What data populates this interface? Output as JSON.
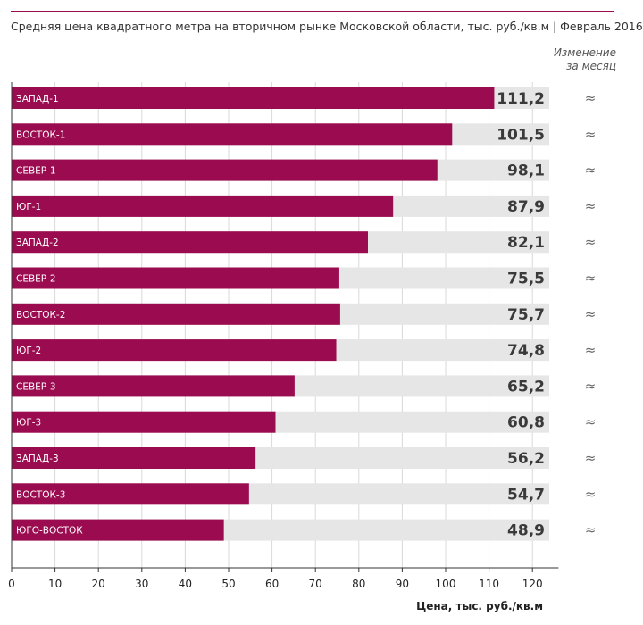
{
  "header": {
    "title": "Средняя цена квадратного метра на вторичном рынке Московской области, тыс. руб./кв.м | Февраль 2016",
    "change_heading_line1": "Изменение",
    "change_heading_line2": "за месяц"
  },
  "colors": {
    "bar": "#9b0b4f",
    "track": "#e6e6e6",
    "accent_rule": "#9b0b4f"
  },
  "chart_data": {
    "type": "bar",
    "orientation": "horizontal",
    "categories": [
      "ЗАПАД-1",
      "ВОСТОК-1",
      "СЕВЕР-1",
      "ЮГ-1",
      "ЗАПАД-2",
      "СЕВЕР-2",
      "ВОСТОК-2",
      "ЮГ-2",
      "СЕВЕР-3",
      "ЮГ-3",
      "ЗАПАД-3",
      "ВОСТОК-3",
      "ЮГО-ВОСТОК"
    ],
    "values": [
      111.2,
      101.5,
      98.1,
      87.9,
      82.1,
      75.5,
      75.7,
      74.8,
      65.2,
      60.8,
      56.2,
      54.7,
      48.9
    ],
    "value_labels": [
      "111,2",
      "101,5",
      "98,1",
      "87,9",
      "82,1",
      "75,5",
      "75,7",
      "74,8",
      "65,2",
      "60,8",
      "56,2",
      "54,7",
      "48,9"
    ],
    "monthly_change": [
      "≈",
      "≈",
      "≈",
      "≈",
      "≈",
      "≈",
      "≈",
      "≈",
      "≈",
      "≈",
      "≈",
      "≈",
      "≈"
    ],
    "xlabel": "Цена, тыс. руб./кв.м",
    "xlim": [
      0,
      126
    ],
    "xticks": [
      0,
      10,
      20,
      30,
      40,
      50,
      60,
      70,
      80,
      90,
      100,
      110,
      120
    ],
    "grid": true
  }
}
